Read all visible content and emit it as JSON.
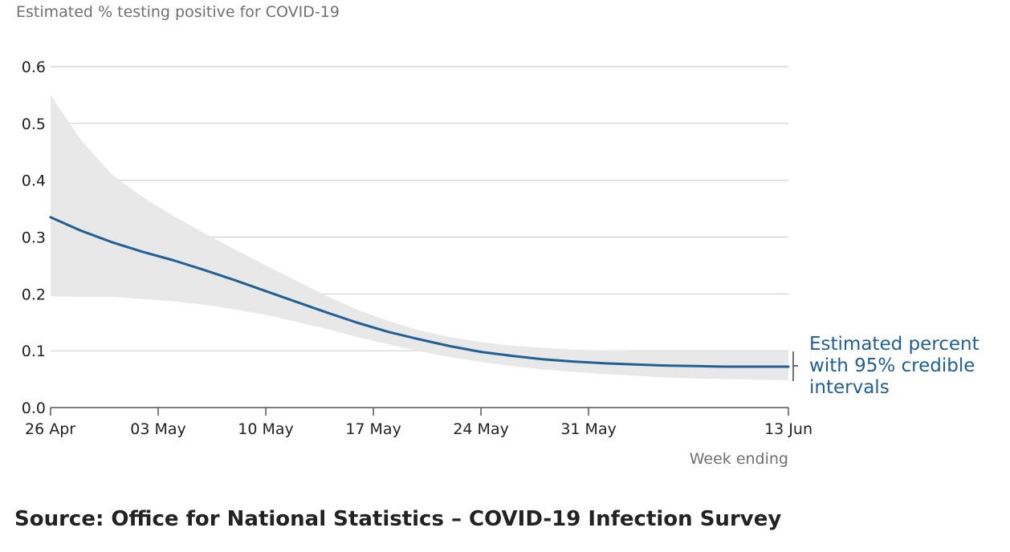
{
  "source_text": "Source: Office for National Statistics – COVID-19 Infection Survey",
  "colors": {
    "line": "#206095",
    "band": "#e8e8e8",
    "grid": "#d0d0d0"
  },
  "chart_data": {
    "type": "line",
    "ylabel": "Estimated % testing positive for COVID-19",
    "xlabel": "Week ending",
    "ylim": [
      0,
      0.6
    ],
    "yticks": [
      0.0,
      0.1,
      0.2,
      0.3,
      0.4,
      0.5,
      0.6
    ],
    "ytick_labels": [
      "0.0",
      "0.1",
      "0.2",
      "0.3",
      "0.4",
      "0.5",
      "0.6"
    ],
    "xlim": [
      "2021-04-26",
      "2021-06-13"
    ],
    "xticks": [
      "2021-04-26",
      "2021-05-03",
      "2021-05-10",
      "2021-05-17",
      "2021-05-24",
      "2021-05-31",
      "2021-06-13"
    ],
    "xtick_labels": [
      "26 Apr",
      "03 May",
      "10 May",
      "17 May",
      "24 May",
      "31 May",
      "13 Jun"
    ],
    "grid": true,
    "legend_label": "Estimated percent with 95% credible intervals",
    "legend_lines": [
      "Estimated percent",
      "with 95% credible",
      "intervals"
    ],
    "series": [
      {
        "x": [
          "2021-04-26",
          "2021-04-28",
          "2021-04-30",
          "2021-05-02",
          "2021-05-04",
          "2021-05-06",
          "2021-05-08",
          "2021-05-10",
          "2021-05-12",
          "2021-05-14",
          "2021-05-16",
          "2021-05-18",
          "2021-05-20",
          "2021-05-22",
          "2021-05-24",
          "2021-05-26",
          "2021-05-28",
          "2021-05-30",
          "2021-06-01",
          "2021-06-03",
          "2021-06-05",
          "2021-06-07",
          "2021-06-09",
          "2021-06-11",
          "2021-06-13"
        ],
        "y": [
          0.335,
          0.311,
          0.291,
          0.274,
          0.259,
          0.242,
          0.224,
          0.205,
          0.186,
          0.167,
          0.149,
          0.133,
          0.12,
          0.108,
          0.098,
          0.091,
          0.085,
          0.081,
          0.078,
          0.076,
          0.074,
          0.073,
          0.072,
          0.072,
          0.072
        ],
        "lower": [
          0.196,
          0.195,
          0.195,
          0.191,
          0.187,
          0.181,
          0.173,
          0.163,
          0.151,
          0.138,
          0.124,
          0.111,
          0.099,
          0.089,
          0.08,
          0.073,
          0.067,
          0.063,
          0.059,
          0.056,
          0.053,
          0.051,
          0.05,
          0.049,
          0.048
        ],
        "upper": [
          0.55,
          0.47,
          0.41,
          0.37,
          0.337,
          0.307,
          0.278,
          0.25,
          0.223,
          0.196,
          0.172,
          0.152,
          0.136,
          0.124,
          0.115,
          0.109,
          0.105,
          0.102,
          0.101,
          0.1,
          0.1,
          0.1,
          0.1,
          0.1,
          0.1
        ]
      }
    ]
  }
}
